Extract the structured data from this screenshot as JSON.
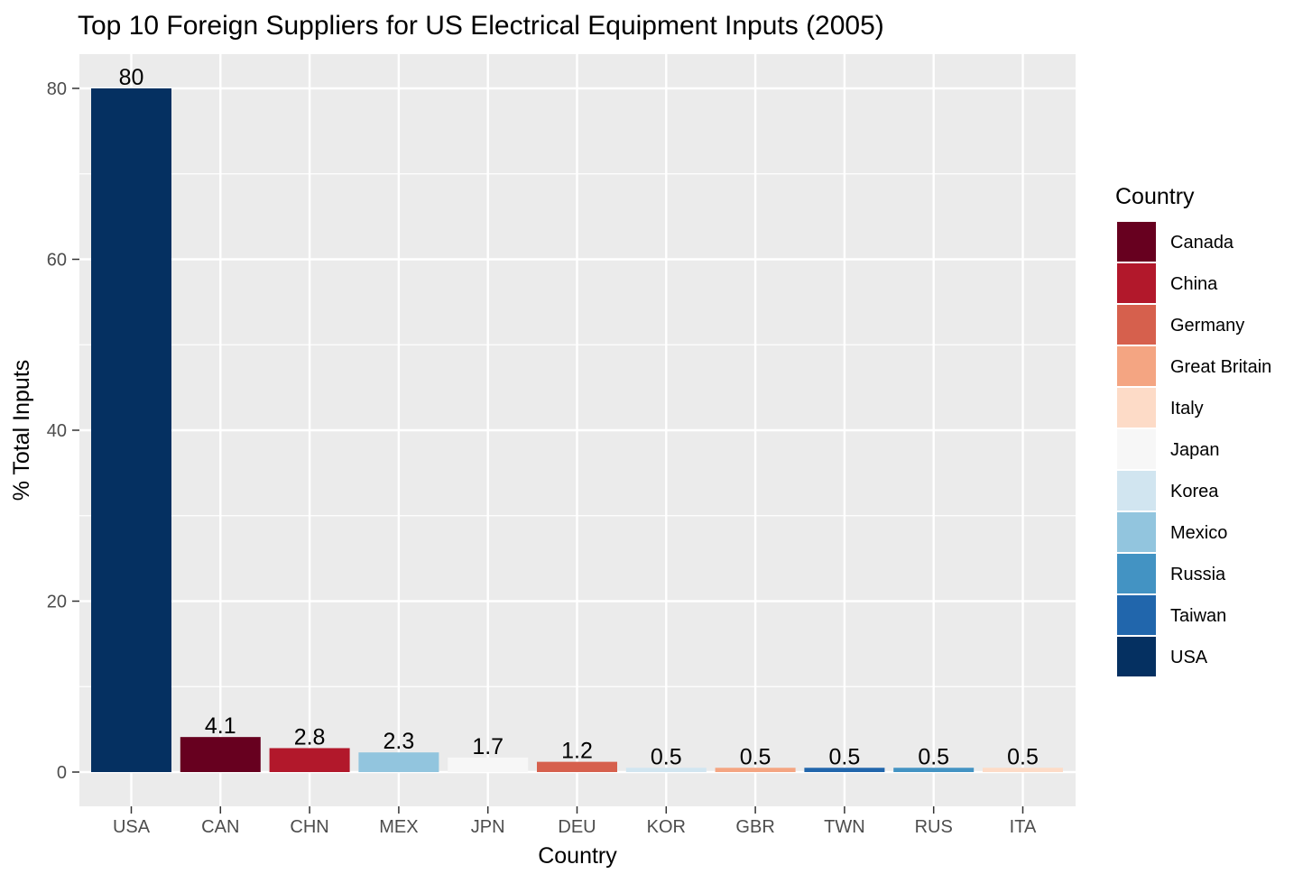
{
  "chart_data": {
    "type": "bar",
    "title": "Top 10 Foreign Suppliers for US Electrical Equipment Inputs (2005)",
    "xlabel": "Country",
    "ylabel": "% Total Inputs",
    "ylim": [
      -4,
      84
    ],
    "yticks": [
      0,
      20,
      40,
      60,
      80
    ],
    "grid": true,
    "legend_position": "right",
    "legend_title": "Country",
    "categories": [
      "USA",
      "CAN",
      "CHN",
      "MEX",
      "JPN",
      "DEU",
      "KOR",
      "GBR",
      "TWN",
      "RUS",
      "ITA"
    ],
    "values": [
      80,
      4.1,
      2.8,
      2.3,
      1.7,
      1.2,
      0.5,
      0.5,
      0.5,
      0.5,
      0.5
    ],
    "value_labels": [
      "80",
      "4.1",
      "2.8",
      "2.3",
      "1.7",
      "1.2",
      "0.5",
      "0.5",
      "0.5",
      "0.5",
      "0.5"
    ],
    "bar_legend_names": [
      "USA",
      "Canada",
      "China",
      "Mexico",
      "Japan",
      "Germany",
      "Korea",
      "Great Britain",
      "Taiwan",
      "Russia",
      "Italy"
    ],
    "legend": [
      {
        "name": "Canada",
        "color": "#67001F"
      },
      {
        "name": "China",
        "color": "#B2182B"
      },
      {
        "name": "Germany",
        "color": "#D6604D"
      },
      {
        "name": "Great Britain",
        "color": "#F4A582"
      },
      {
        "name": "Italy",
        "color": "#FDDBC7"
      },
      {
        "name": "Japan",
        "color": "#F7F7F7"
      },
      {
        "name": "Korea",
        "color": "#D1E5F0"
      },
      {
        "name": "Mexico",
        "color": "#92C5DE"
      },
      {
        "name": "Russia",
        "color": "#4393C3"
      },
      {
        "name": "Taiwan",
        "color": "#2166AC"
      },
      {
        "name": "USA",
        "color": "#053061"
      }
    ],
    "panel_color": "#EBEBEB",
    "grid_color": "#FFFFFF"
  }
}
